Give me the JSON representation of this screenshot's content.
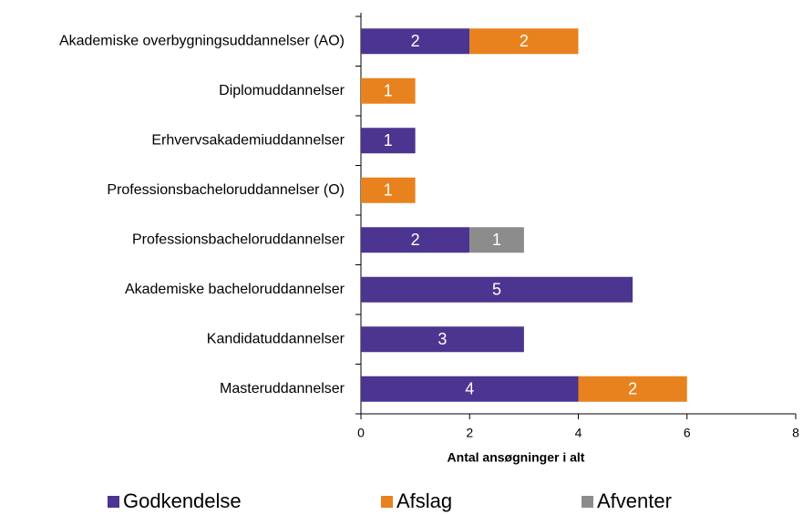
{
  "chart_data": {
    "type": "stacked_bar_horizontal",
    "categories": [
      "Akademiske overbygningsuddannelser (AO)",
      "Diplomuddannelser",
      "Erhvervsakademiuddannelser",
      "Professionsbacheloruddannelser (O)",
      "Professionsbacheloruddannelser",
      "Akademiske bacheloruddannelser",
      "Kandidatuddannelser",
      "Masteruddannelser"
    ],
    "series": [
      {
        "name": "Godkendelse",
        "color": "#4b3590",
        "values": [
          2,
          null,
          1,
          null,
          2,
          5,
          3,
          4
        ]
      },
      {
        "name": "Afslag",
        "color": "#e8821e",
        "values": [
          2,
          1,
          null,
          1,
          null,
          null,
          null,
          2
        ]
      },
      {
        "name": "Afventer",
        "color": "#8c8c8c",
        "values": [
          null,
          null,
          null,
          null,
          1,
          null,
          null,
          null
        ]
      }
    ],
    "x_label": "Antal ansøgninger i alt",
    "xlim": [
      0,
      8
    ],
    "xticks": [
      0,
      2,
      4,
      6,
      8
    ],
    "legend": "bottom"
  }
}
